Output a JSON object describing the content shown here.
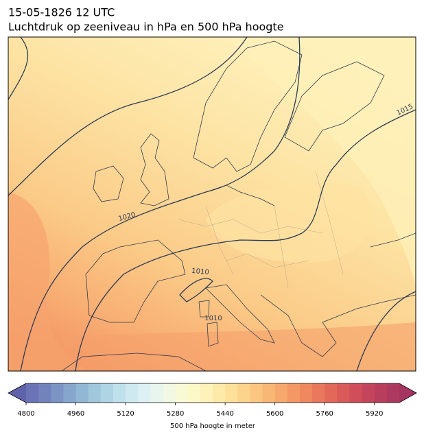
{
  "map": {
    "title_line1": "15-05-1826 12 UTC",
    "title_line2": "Luchtdruk op zeeniveau in hPa en 500 hPa hoogte",
    "contour_labels": [
      1015,
      1020,
      1010,
      1010
    ],
    "colorbar": {
      "label": "500 hPa hoogte in meter",
      "lim": [
        4800,
        6000
      ],
      "ticks": [
        4800,
        4960,
        5120,
        5280,
        5440,
        5600,
        5760,
        5920
      ],
      "colors": [
        "#6b72b5",
        "#7283bc",
        "#7b94c4",
        "#86a6cc",
        "#92b7d4",
        "#a0c7dc",
        "#afd5e4",
        "#bfe1ec",
        "#cfe9f1",
        "#ddf0f3",
        "#e8f5ee",
        "#f1f8e3",
        "#f8fad6",
        "#fdf8c8",
        "#fef2b8",
        "#feeaa8",
        "#fde09a",
        "#fcd48c",
        "#fbc680",
        "#f9b775",
        "#f7a86c",
        "#f49865",
        "#ef885f",
        "#ea785c",
        "#e26859",
        "#d95a58",
        "#cf4e59",
        "#c4455b",
        "#b83e5e",
        "#ad3960"
      ],
      "under_color": "#5f63a9",
      "over_color": "#a53460"
    }
  }
}
